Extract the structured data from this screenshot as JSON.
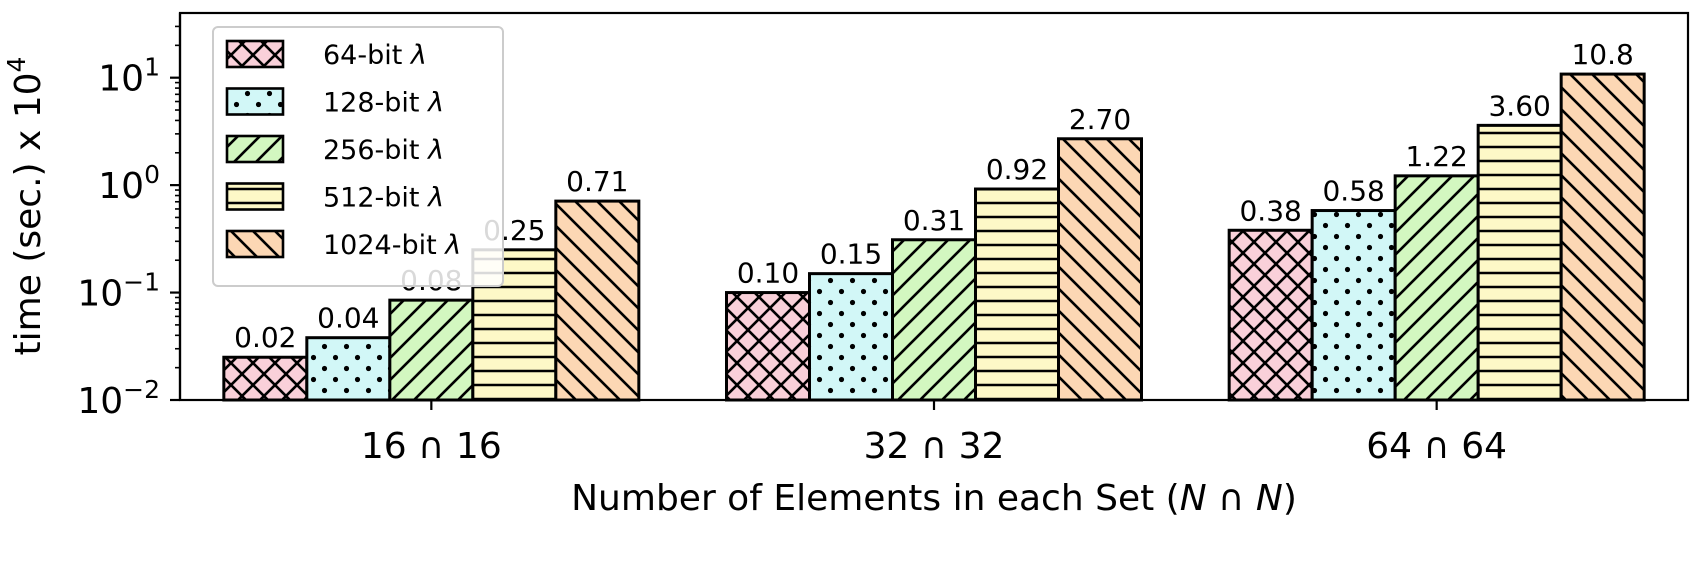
{
  "chart_data": {
    "type": "bar",
    "scale": "log",
    "categories": [
      "16 ∩ 16",
      "32 ∩ 32",
      "64 ∩ 64"
    ],
    "series": [
      {
        "name": "64-bit λ",
        "values": [
          0.025,
          0.1,
          0.38
        ],
        "labels": [
          "0.02",
          "0.10",
          "0.38"
        ],
        "color": "#f9d0d9",
        "hatch": "cross"
      },
      {
        "name": "128-bit λ",
        "values": [
          0.038,
          0.15,
          0.58
        ],
        "labels": [
          "0.04",
          "0.15",
          "0.58"
        ],
        "color": "#d2f7f7",
        "hatch": "dots"
      },
      {
        "name": "256-bit λ",
        "values": [
          0.085,
          0.31,
          1.22
        ],
        "labels": [
          "0.08",
          "0.31",
          "1.22"
        ],
        "color": "#d3f7c0",
        "hatch": "diag-fwd"
      },
      {
        "name": "512-bit λ",
        "values": [
          0.25,
          0.92,
          3.6
        ],
        "labels": [
          "0.25",
          "0.92",
          "3.60"
        ],
        "color": "#fdf8c7",
        "hatch": "horizontal"
      },
      {
        "name": "1024-bit λ",
        "values": [
          0.71,
          2.7,
          10.8
        ],
        "labels": [
          "0.71",
          "2.70",
          "10.8"
        ],
        "color": "#fcd7b4",
        "hatch": "diag-back"
      }
    ],
    "ylim": [
      0.01,
      40
    ],
    "yticks": [
      {
        "value": 0.01,
        "base": "10",
        "exp": "−2"
      },
      {
        "value": 0.1,
        "base": "10",
        "exp": "−1"
      },
      {
        "value": 1,
        "base": "10",
        "exp": "0"
      },
      {
        "value": 10,
        "base": "10",
        "exp": "1"
      }
    ],
    "ylabel": {
      "text": "time (sec.) x 10",
      "sup": "4"
    },
    "xlabel": {
      "prefix": "Number of Elements in each Set (",
      "italic1": "N",
      "middle": " ∩ ",
      "italic2": "N",
      "suffix": ")"
    },
    "legend": "top-left",
    "grid": false
  }
}
